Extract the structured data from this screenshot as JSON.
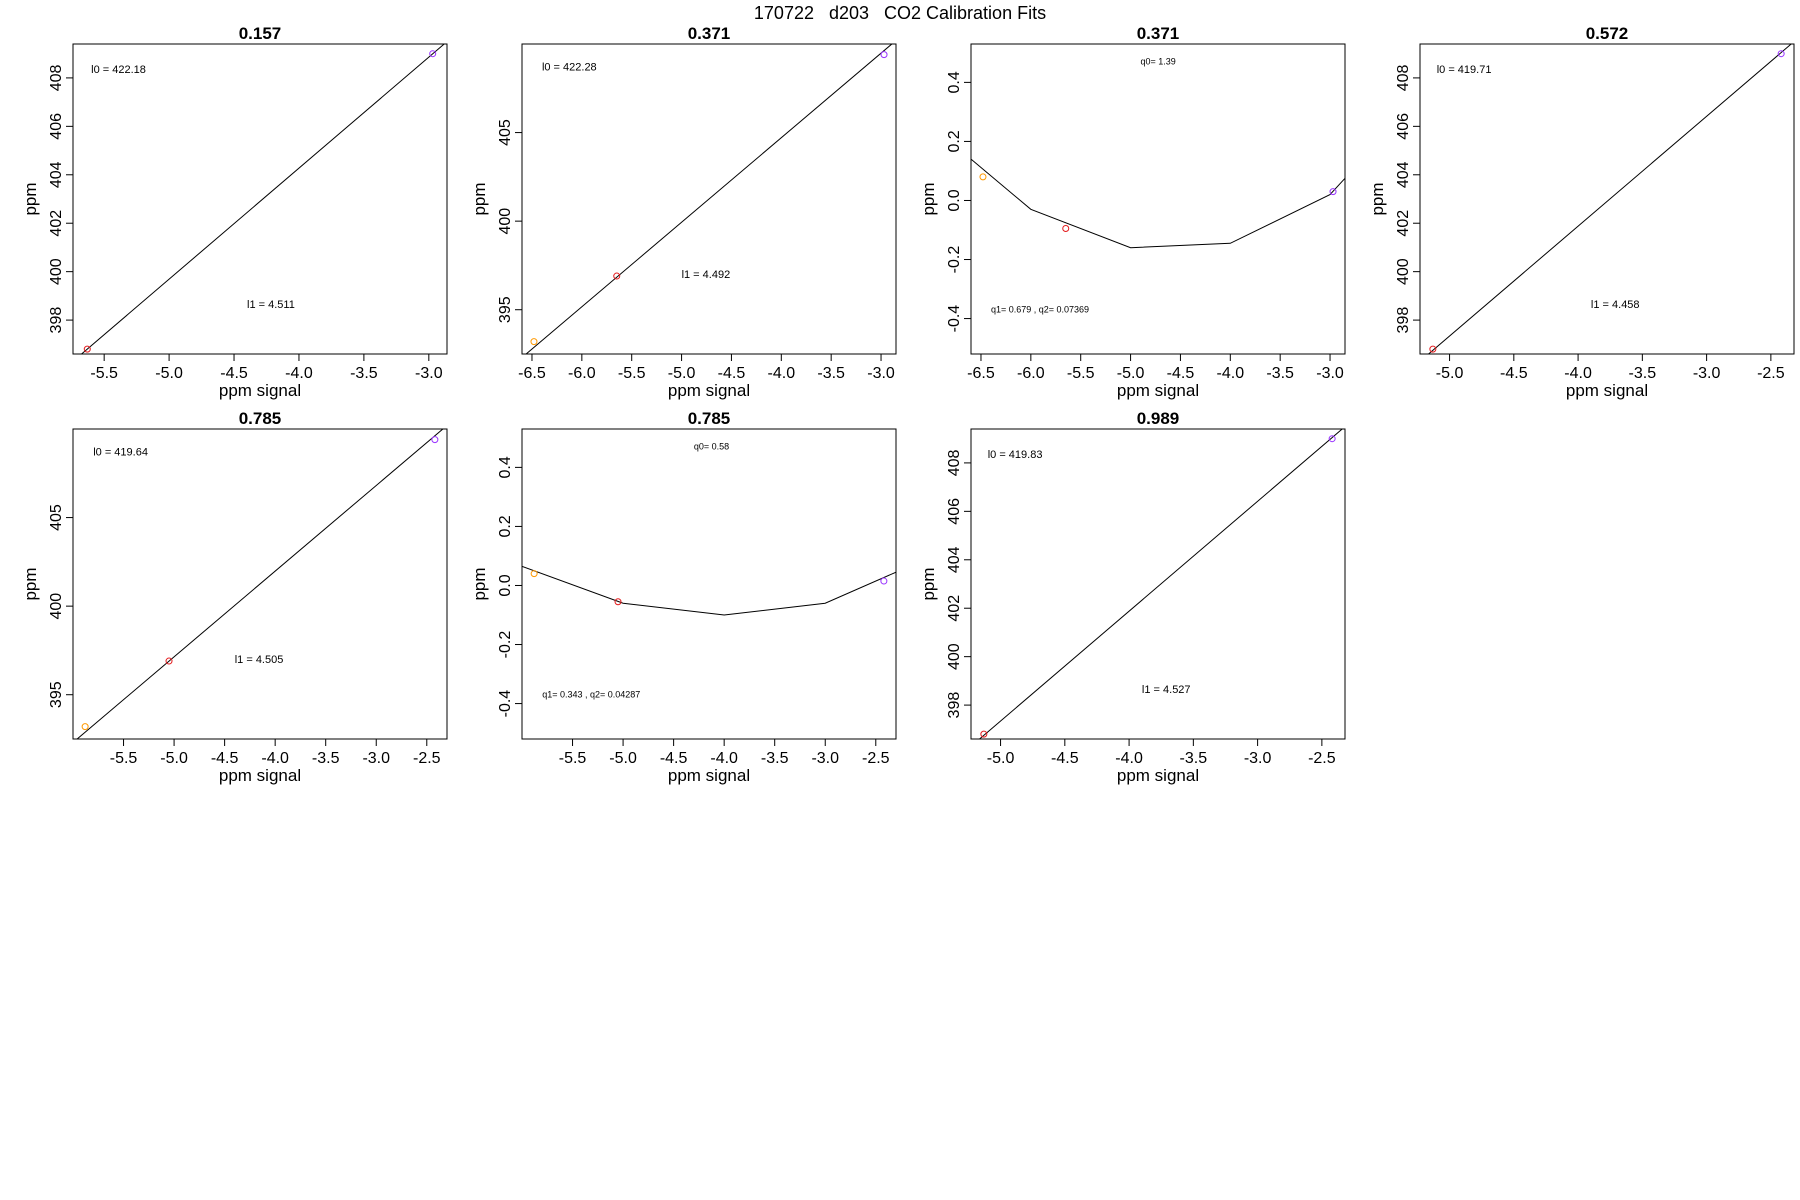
{
  "figure": {
    "title": "170722   d203   CO2 Calibration Fits",
    "colors": {
      "line": "#000000",
      "axis": "#000000"
    }
  },
  "chart_data": [
    {
      "type": "scatter",
      "title": "0.157",
      "xlabel": "ppm signal",
      "ylabel": "ppm",
      "xlim": [
        -5.74,
        -2.86
      ],
      "ylim": [
        396.6,
        409.4
      ],
      "xticks": [
        -5.5,
        -5.0,
        -4.5,
        -4.0,
        -3.5,
        -3.0
      ],
      "yticks": [
        398,
        400,
        402,
        404,
        406,
        408
      ],
      "points": [
        {
          "x": -5.63,
          "y": 396.8,
          "color": "#e41a1c"
        },
        {
          "x": -2.97,
          "y": 409.0,
          "color": "#9933ff"
        }
      ],
      "fit_line": {
        "x": [
          -5.74,
          -2.86
        ],
        "y": [
          396.3,
          409.5
        ]
      },
      "annotations": [
        {
          "text": "l0 =  422.18",
          "x": -5.6,
          "y": 408.2
        },
        {
          "text": "l1 =  4.511",
          "x": -4.4,
          "y": 398.5
        }
      ]
    },
    {
      "type": "scatter",
      "title": "0.371",
      "xlabel": "ppm signal",
      "ylabel": "ppm",
      "xlim": [
        -6.6,
        -2.85
      ],
      "ylim": [
        392.5,
        410.0
      ],
      "xticks": [
        -6.5,
        -6.0,
        -5.5,
        -5.0,
        -4.5,
        -4.0,
        -3.5,
        -3.0
      ],
      "yticks": [
        395,
        400,
        405
      ],
      "points": [
        {
          "x": -6.48,
          "y": 393.2,
          "color": "#ff9900"
        },
        {
          "x": -5.65,
          "y": 396.9,
          "color": "#e41a1c"
        },
        {
          "x": -2.97,
          "y": 409.4,
          "color": "#9933ff"
        }
      ],
      "fit_line": {
        "x": [
          -6.6,
          -2.85
        ],
        "y": [
          392.3,
          410.2
        ]
      },
      "annotations": [
        {
          "text": "l0 =  422.28",
          "x": -6.4,
          "y": 408.5
        },
        {
          "text": "l1 =  4.492",
          "x": -5.0,
          "y": 396.8
        }
      ]
    },
    {
      "type": "scatter",
      "title": "0.371",
      "xlabel": "ppm signal",
      "ylabel": "ppm",
      "xlim": [
        -6.6,
        -2.85
      ],
      "ylim": [
        -0.52,
        0.53
      ],
      "xticks": [
        -6.5,
        -6.0,
        -5.5,
        -5.0,
        -4.5,
        -4.0,
        -3.5,
        -3.0
      ],
      "yticks": [
        -0.4,
        -0.2,
        0.0,
        0.2,
        0.4
      ],
      "points": [
        {
          "x": -6.48,
          "y": 0.08,
          "color": "#ff9900"
        },
        {
          "x": -5.65,
          "y": -0.095,
          "color": "#e41a1c"
        },
        {
          "x": -2.97,
          "y": 0.03,
          "color": "#9933ff"
        }
      ],
      "fit_line": {
        "x": [
          -6.6,
          -6.0,
          -5.0,
          -4.0,
          -3.0,
          -2.85
        ],
        "y": [
          0.14,
          -0.03,
          -0.16,
          -0.145,
          0.02,
          0.075
        ]
      },
      "annotations": [
        {
          "text": "q0= 1.39",
          "x": -4.9,
          "y": 0.46
        },
        {
          "text": "q1= 0.679 , q2= 0.07369",
          "x": -6.4,
          "y": -0.38
        }
      ]
    },
    {
      "type": "scatter",
      "title": "0.572",
      "xlabel": "ppm signal",
      "ylabel": "ppm",
      "xlim": [
        -5.23,
        -2.32
      ],
      "ylim": [
        396.6,
        409.4
      ],
      "xticks": [
        -5.0,
        -4.5,
        -4.0,
        -3.5,
        -3.0,
        -2.5
      ],
      "yticks": [
        398,
        400,
        402,
        404,
        406,
        408
      ],
      "points": [
        {
          "x": -5.13,
          "y": 396.8,
          "color": "#e41a1c"
        },
        {
          "x": -2.42,
          "y": 409.0,
          "color": "#9933ff"
        }
      ],
      "fit_line": {
        "x": [
          -5.23,
          -2.32
        ],
        "y": [
          396.3,
          409.5
        ]
      },
      "annotations": [
        {
          "text": "l0 =  419.71",
          "x": -5.1,
          "y": 408.2
        },
        {
          "text": "l1 =  4.458",
          "x": -3.9,
          "y": 398.5
        }
      ]
    },
    {
      "type": "scatter",
      "title": "0.785",
      "xlabel": "ppm signal",
      "ylabel": "ppm",
      "xlim": [
        -6.0,
        -2.3
      ],
      "ylim": [
        392.5,
        410.0
      ],
      "xticks": [
        -5.5,
        -5.0,
        -4.5,
        -4.0,
        -3.5,
        -3.0,
        -2.5
      ],
      "yticks": [
        395,
        400,
        405
      ],
      "points": [
        {
          "x": -5.88,
          "y": 393.2,
          "color": "#ff9900"
        },
        {
          "x": -5.05,
          "y": 396.9,
          "color": "#e41a1c"
        },
        {
          "x": -2.42,
          "y": 409.4,
          "color": "#9933ff"
        }
      ],
      "fit_line": {
        "x": [
          -6.0,
          -2.3
        ],
        "y": [
          392.3,
          410.2
        ]
      },
      "annotations": [
        {
          "text": "l0 =  419.64",
          "x": -5.8,
          "y": 408.5
        },
        {
          "text": "l1 =  4.505",
          "x": -4.4,
          "y": 396.8
        }
      ]
    },
    {
      "type": "scatter",
      "title": "0.785",
      "xlabel": "ppm signal",
      "ylabel": "ppm",
      "xlim": [
        -6.0,
        -2.3
      ],
      "ylim": [
        -0.52,
        0.53
      ],
      "xticks": [
        -5.5,
        -5.0,
        -4.5,
        -4.0,
        -3.5,
        -3.0,
        -2.5
      ],
      "yticks": [
        -0.4,
        -0.2,
        0.0,
        0.2,
        0.4
      ],
      "points": [
        {
          "x": -5.88,
          "y": 0.04,
          "color": "#ff9900"
        },
        {
          "x": -5.05,
          "y": -0.055,
          "color": "#e41a1c"
        },
        {
          "x": -2.42,
          "y": 0.015,
          "color": "#9933ff"
        }
      ],
      "fit_line": {
        "x": [
          -6.0,
          -5.0,
          -4.0,
          -3.0,
          -2.3
        ],
        "y": [
          0.065,
          -0.06,
          -0.1,
          -0.06,
          0.045
        ]
      },
      "annotations": [
        {
          "text": "q0= 0.58",
          "x": -4.3,
          "y": 0.46
        },
        {
          "text": "q1= 0.343 , q2= 0.04287",
          "x": -5.8,
          "y": -0.38
        }
      ]
    },
    {
      "type": "scatter",
      "title": "0.989",
      "xlabel": "ppm signal",
      "ylabel": "ppm",
      "xlim": [
        -5.23,
        -2.32
      ],
      "ylim": [
        396.6,
        409.4
      ],
      "xticks": [
        -5.0,
        -4.5,
        -4.0,
        -3.5,
        -3.0,
        -2.5
      ],
      "yticks": [
        398,
        400,
        402,
        404,
        406,
        408
      ],
      "points": [
        {
          "x": -5.13,
          "y": 396.8,
          "color": "#e41a1c"
        },
        {
          "x": -2.42,
          "y": 409.0,
          "color": "#9933ff"
        }
      ],
      "fit_line": {
        "x": [
          -5.23,
          -2.32
        ],
        "y": [
          396.3,
          409.5
        ]
      },
      "annotations": [
        {
          "text": "l0 =  419.83",
          "x": -5.1,
          "y": 408.2
        },
        {
          "text": "l1 =  4.527",
          "x": -3.9,
          "y": 398.5
        }
      ]
    }
  ]
}
